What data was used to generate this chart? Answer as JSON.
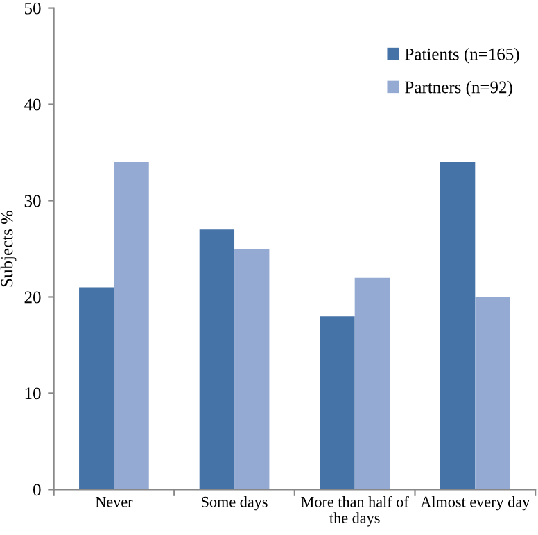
{
  "chart_data": {
    "type": "bar",
    "ylabel": "Subjects %",
    "categories": [
      "Never",
      "Some days",
      "More than half of\nthe days",
      "Almost every day"
    ],
    "series": [
      {
        "name": "Patients (n=165)",
        "color": "#4572a7",
        "values": [
          21,
          27,
          18,
          34
        ]
      },
      {
        "name": "Partners (n=92)",
        "color": "#94aad2",
        "values": [
          34,
          25,
          22,
          20
        ]
      }
    ],
    "ylim": [
      0,
      50
    ],
    "yticks": [
      0,
      10,
      20,
      30,
      40,
      50
    ],
    "grid": false,
    "legend": "top right"
  }
}
